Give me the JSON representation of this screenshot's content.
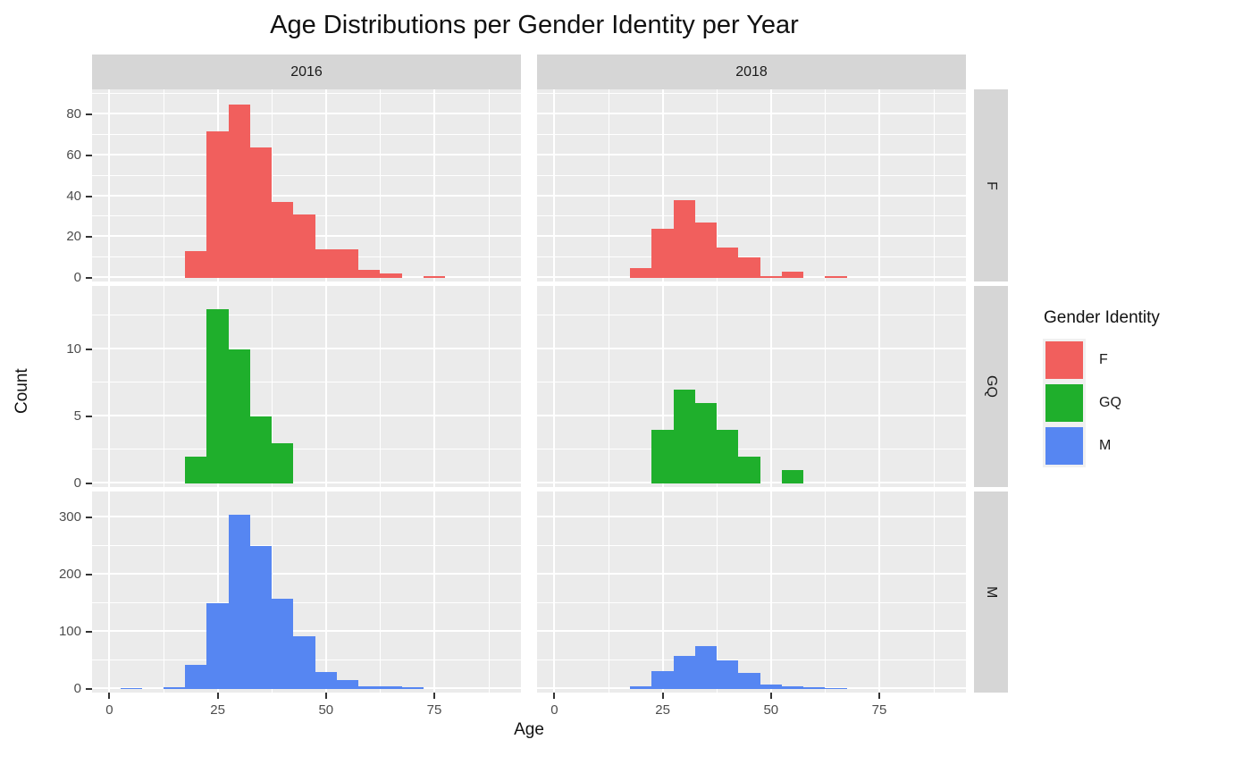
{
  "title": "Age Distributions per Gender Identity per Year",
  "axes": {
    "x_title": "Age",
    "y_title": "Count"
  },
  "facets": {
    "col_labels": [
      "2016",
      "2018"
    ],
    "row_labels": [
      "F",
      "GQ",
      "M"
    ]
  },
  "legend": {
    "title": "Gender Identity",
    "entries": [
      {
        "label": "F",
        "color": "#f15f5d"
      },
      {
        "label": "GQ",
        "color": "#1faf2c"
      },
      {
        "label": "M",
        "color": "#5686f2"
      }
    ]
  },
  "colors": {
    "panel_background": "#ebebeb",
    "strip_background": "#d6d6d6",
    "gridline": "#ffffff",
    "tick_text": "#4d4d4d"
  },
  "chart_data": {
    "type": "bar",
    "subtype": "faceted-histogram",
    "title": "Age Distributions per Gender Identity per Year",
    "xlabel": "Age",
    "ylabel": "Count",
    "bin_width": 5,
    "x_ticks": [
      0,
      25,
      50,
      75
    ],
    "x_minor_ticks": [
      12.5,
      37.5,
      62.5,
      87.5
    ],
    "xlim": [
      -4,
      95
    ],
    "grid": "on",
    "legend_position": "right",
    "rows": [
      {
        "row_label": "F",
        "color": "#f15f5d",
        "y_ticks": [
          0,
          20,
          40,
          60,
          80
        ],
        "y_minor_ticks": [
          10,
          30,
          50,
          70,
          90
        ],
        "ylim": [
          0,
          92.4
        ],
        "panels": [
          {
            "col_label": "2016",
            "bins": [
              {
                "center": 20,
                "count": 13
              },
              {
                "center": 25,
                "count": 72
              },
              {
                "center": 30,
                "count": 85
              },
              {
                "center": 35,
                "count": 64
              },
              {
                "center": 40,
                "count": 37
              },
              {
                "center": 45,
                "count": 31
              },
              {
                "center": 50,
                "count": 14
              },
              {
                "center": 55,
                "count": 14
              },
              {
                "center": 60,
                "count": 4
              },
              {
                "center": 65,
                "count": 2
              },
              {
                "center": 75,
                "count": 1
              }
            ]
          },
          {
            "col_label": "2018",
            "bins": [
              {
                "center": 20,
                "count": 5
              },
              {
                "center": 25,
                "count": 24
              },
              {
                "center": 30,
                "count": 38
              },
              {
                "center": 35,
                "count": 27
              },
              {
                "center": 40,
                "count": 15
              },
              {
                "center": 45,
                "count": 10
              },
              {
                "center": 50,
                "count": 1
              },
              {
                "center": 55,
                "count": 3
              },
              {
                "center": 65,
                "count": 1
              }
            ]
          }
        ]
      },
      {
        "row_label": "GQ",
        "color": "#1faf2c",
        "y_ticks": [
          0,
          5,
          10
        ],
        "y_minor_ticks": [
          2.5,
          7.5,
          12.5
        ],
        "ylim": [
          0,
          14.7
        ],
        "panels": [
          {
            "col_label": "2016",
            "bins": [
              {
                "center": 20,
                "count": 2
              },
              {
                "center": 25,
                "count": 13
              },
              {
                "center": 30,
                "count": 10
              },
              {
                "center": 35,
                "count": 5
              },
              {
                "center": 40,
                "count": 3
              }
            ]
          },
          {
            "col_label": "2018",
            "bins": [
              {
                "center": 25,
                "count": 4
              },
              {
                "center": 30,
                "count": 7
              },
              {
                "center": 35,
                "count": 6
              },
              {
                "center": 40,
                "count": 4
              },
              {
                "center": 45,
                "count": 2
              },
              {
                "center": 55,
                "count": 1
              }
            ]
          }
        ]
      },
      {
        "row_label": "M",
        "color": "#5686f2",
        "y_ticks": [
          0,
          100,
          200,
          300
        ],
        "y_minor_ticks": [
          50,
          150,
          250
        ],
        "ylim": [
          0,
          345
        ],
        "panels": [
          {
            "col_label": "2016",
            "bins": [
              {
                "center": 5,
                "count": 1
              },
              {
                "center": 15,
                "count": 2
              },
              {
                "center": 20,
                "count": 42
              },
              {
                "center": 25,
                "count": 150
              },
              {
                "center": 30,
                "count": 305
              },
              {
                "center": 35,
                "count": 250
              },
              {
                "center": 40,
                "count": 157
              },
              {
                "center": 45,
                "count": 92
              },
              {
                "center": 50,
                "count": 30
              },
              {
                "center": 55,
                "count": 16
              },
              {
                "center": 60,
                "count": 4
              },
              {
                "center": 65,
                "count": 4
              },
              {
                "center": 70,
                "count": 2
              }
            ]
          },
          {
            "col_label": "2018",
            "bins": [
              {
                "center": 20,
                "count": 5
              },
              {
                "center": 25,
                "count": 31
              },
              {
                "center": 30,
                "count": 58
              },
              {
                "center": 35,
                "count": 74
              },
              {
                "center": 40,
                "count": 49
              },
              {
                "center": 45,
                "count": 27
              },
              {
                "center": 50,
                "count": 7
              },
              {
                "center": 55,
                "count": 5
              },
              {
                "center": 60,
                "count": 2
              },
              {
                "center": 65,
                "count": 1
              }
            ]
          }
        ]
      }
    ]
  }
}
